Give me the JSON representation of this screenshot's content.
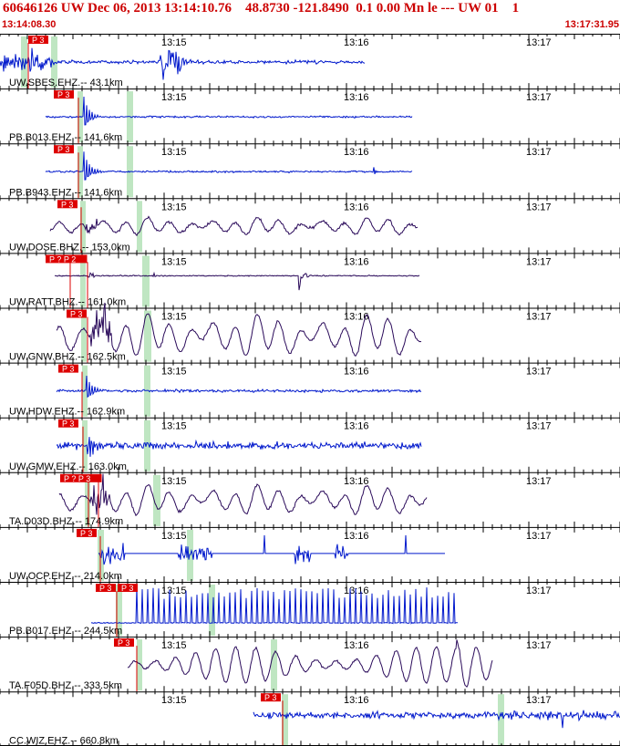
{
  "header": {
    "line": "60646126 UW Dec 06, 2013 13:14:10.76    48.8730 -121.8490  0.1 0.00 Mn le --- UW 01    1",
    "start_time": "13:14:08.30",
    "end_time": "13:17:31.95"
  },
  "time_ticks": [
    "13:15",
    "13:16",
    "13:17"
  ],
  "colors": {
    "trace_blue": "#0018cc",
    "trace_purple": "#2a0a5a",
    "pick_red": "#dd0000",
    "window_green": "#bfe6c2",
    "axis_black": "#000000",
    "header_red": "#cc0000"
  },
  "traces": [
    {
      "label": "UW.SBES.EHZ.-- 43.1km",
      "picks": [
        "P 3"
      ],
      "color": "blue"
    },
    {
      "label": "PB.B013.EHZ.-- 141.6km",
      "picks": [
        "P 3"
      ],
      "color": "blue"
    },
    {
      "label": "PB.B943.EHZ.-- 141.6km",
      "picks": [
        "P 3"
      ],
      "color": "blue"
    },
    {
      "label": "UW.DOSE.BHZ.-- 153.0km",
      "picks": [
        "P 3"
      ],
      "color": "purple"
    },
    {
      "label": "UW.RATT.BHZ.-- 161.0km",
      "picks": [
        "P ? P 2"
      ],
      "color": "purple"
    },
    {
      "label": "UW.GNW.BHZ.-- 162.5km",
      "picks": [
        "P 3"
      ],
      "color": "purple"
    },
    {
      "label": "UW.HDW.EHZ.-- 162.9km",
      "picks": [
        "P 3"
      ],
      "color": "blue"
    },
    {
      "label": "UW.GMW.EHZ.-- 163.0km",
      "picks": [
        "P 3"
      ],
      "color": "blue"
    },
    {
      "label": "TA.D03D.BHZ.-- 174.9km",
      "picks": [
        "P ? P 3"
      ],
      "color": "purple"
    },
    {
      "label": "UW.OCP.EHZ.-- 214.0km",
      "picks": [
        "P 3"
      ],
      "color": "blue"
    },
    {
      "label": "PB.B017.EHZ.-- 244.5km",
      "picks": [
        "P 3",
        "P 3"
      ],
      "color": "blue"
    },
    {
      "label": "TA.F05D.BHZ.-- 333.5km",
      "picks": [
        "P 3"
      ],
      "color": "purple"
    },
    {
      "label": "CC.WIZ.EHZ.-- 660.8km",
      "picks": [
        "P 3"
      ],
      "color": "blue"
    }
  ]
}
